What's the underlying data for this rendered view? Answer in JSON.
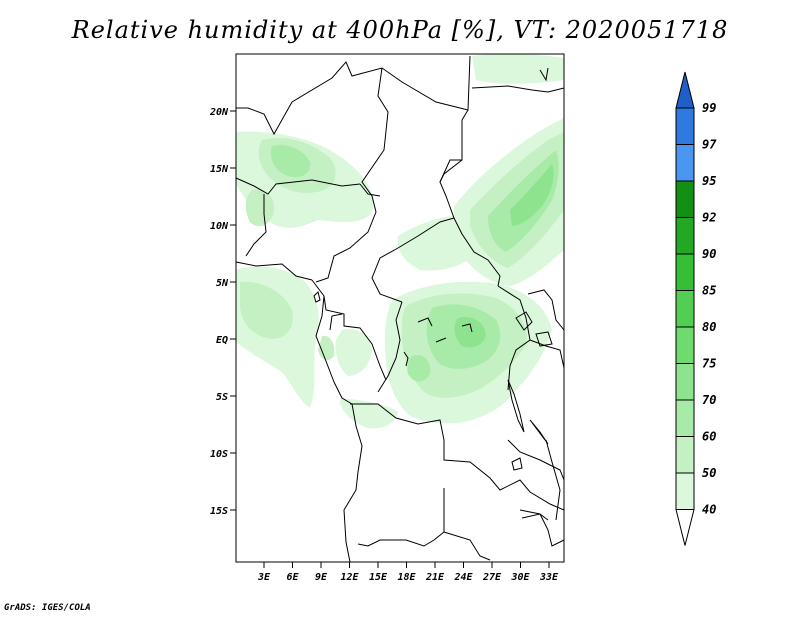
{
  "title": "Relative humidity at 400hPa [%], VT: 2020051718",
  "credit": "GrADS: IGES/COLA",
  "map": {
    "lat_ticks": [
      "20N",
      "15N",
      "10N",
      "5N",
      "EQ",
      "5S",
      "10S",
      "15S"
    ],
    "lon_ticks": [
      "3E",
      "6E",
      "9E",
      "12E",
      "15E",
      "18E",
      "21E",
      "24E",
      "27E",
      "30E",
      "33E"
    ]
  },
  "colorbar": {
    "levels": [
      "40",
      "50",
      "60",
      "70",
      "75",
      "80",
      "85",
      "90",
      "92",
      "95",
      "97",
      "99"
    ],
    "colors": [
      "#f0fff0",
      "#dcf8dc",
      "#c4f0c4",
      "#a8eba8",
      "#8ee38e",
      "#6fdb6f",
      "#52cf52",
      "#36bf36",
      "#23a823",
      "#138f13",
      "#4a96f0",
      "#2f7ae0",
      "#1e5fc8"
    ]
  }
}
